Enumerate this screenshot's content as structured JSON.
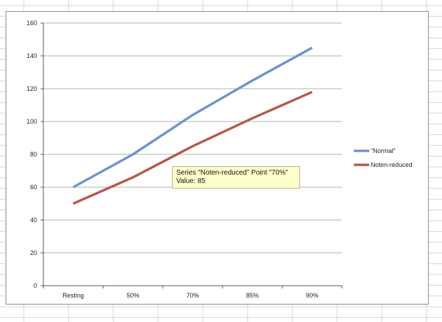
{
  "colors": {
    "series_normal": "#6f95c9",
    "series_reduced": "#b55a4e",
    "grid": "#b0b0b0",
    "tooltip_bg": "#ffffcc"
  },
  "chart_data": {
    "type": "line",
    "categories": [
      "Resting",
      "50%",
      "70%",
      "85%",
      "90%"
    ],
    "series": [
      {
        "name": "\"Normal\"",
        "color": "#6f95c9",
        "values": [
          60,
          80,
          104,
          125,
          145
        ]
      },
      {
        "name": "Noten-reduced",
        "color": "#b55a4e",
        "values": [
          50,
          66,
          85,
          102,
          118
        ]
      }
    ],
    "title": "",
    "xlabel": "",
    "ylabel": "",
    "ylim": [
      0,
      160
    ],
    "yticks": [
      0,
      20,
      40,
      60,
      80,
      100,
      120,
      140,
      160
    ],
    "grid": true,
    "legend": "right"
  },
  "tooltip": {
    "line1": "Series \"Noten-reduced\" Point \"70%\"",
    "line2": "Value: 85"
  }
}
